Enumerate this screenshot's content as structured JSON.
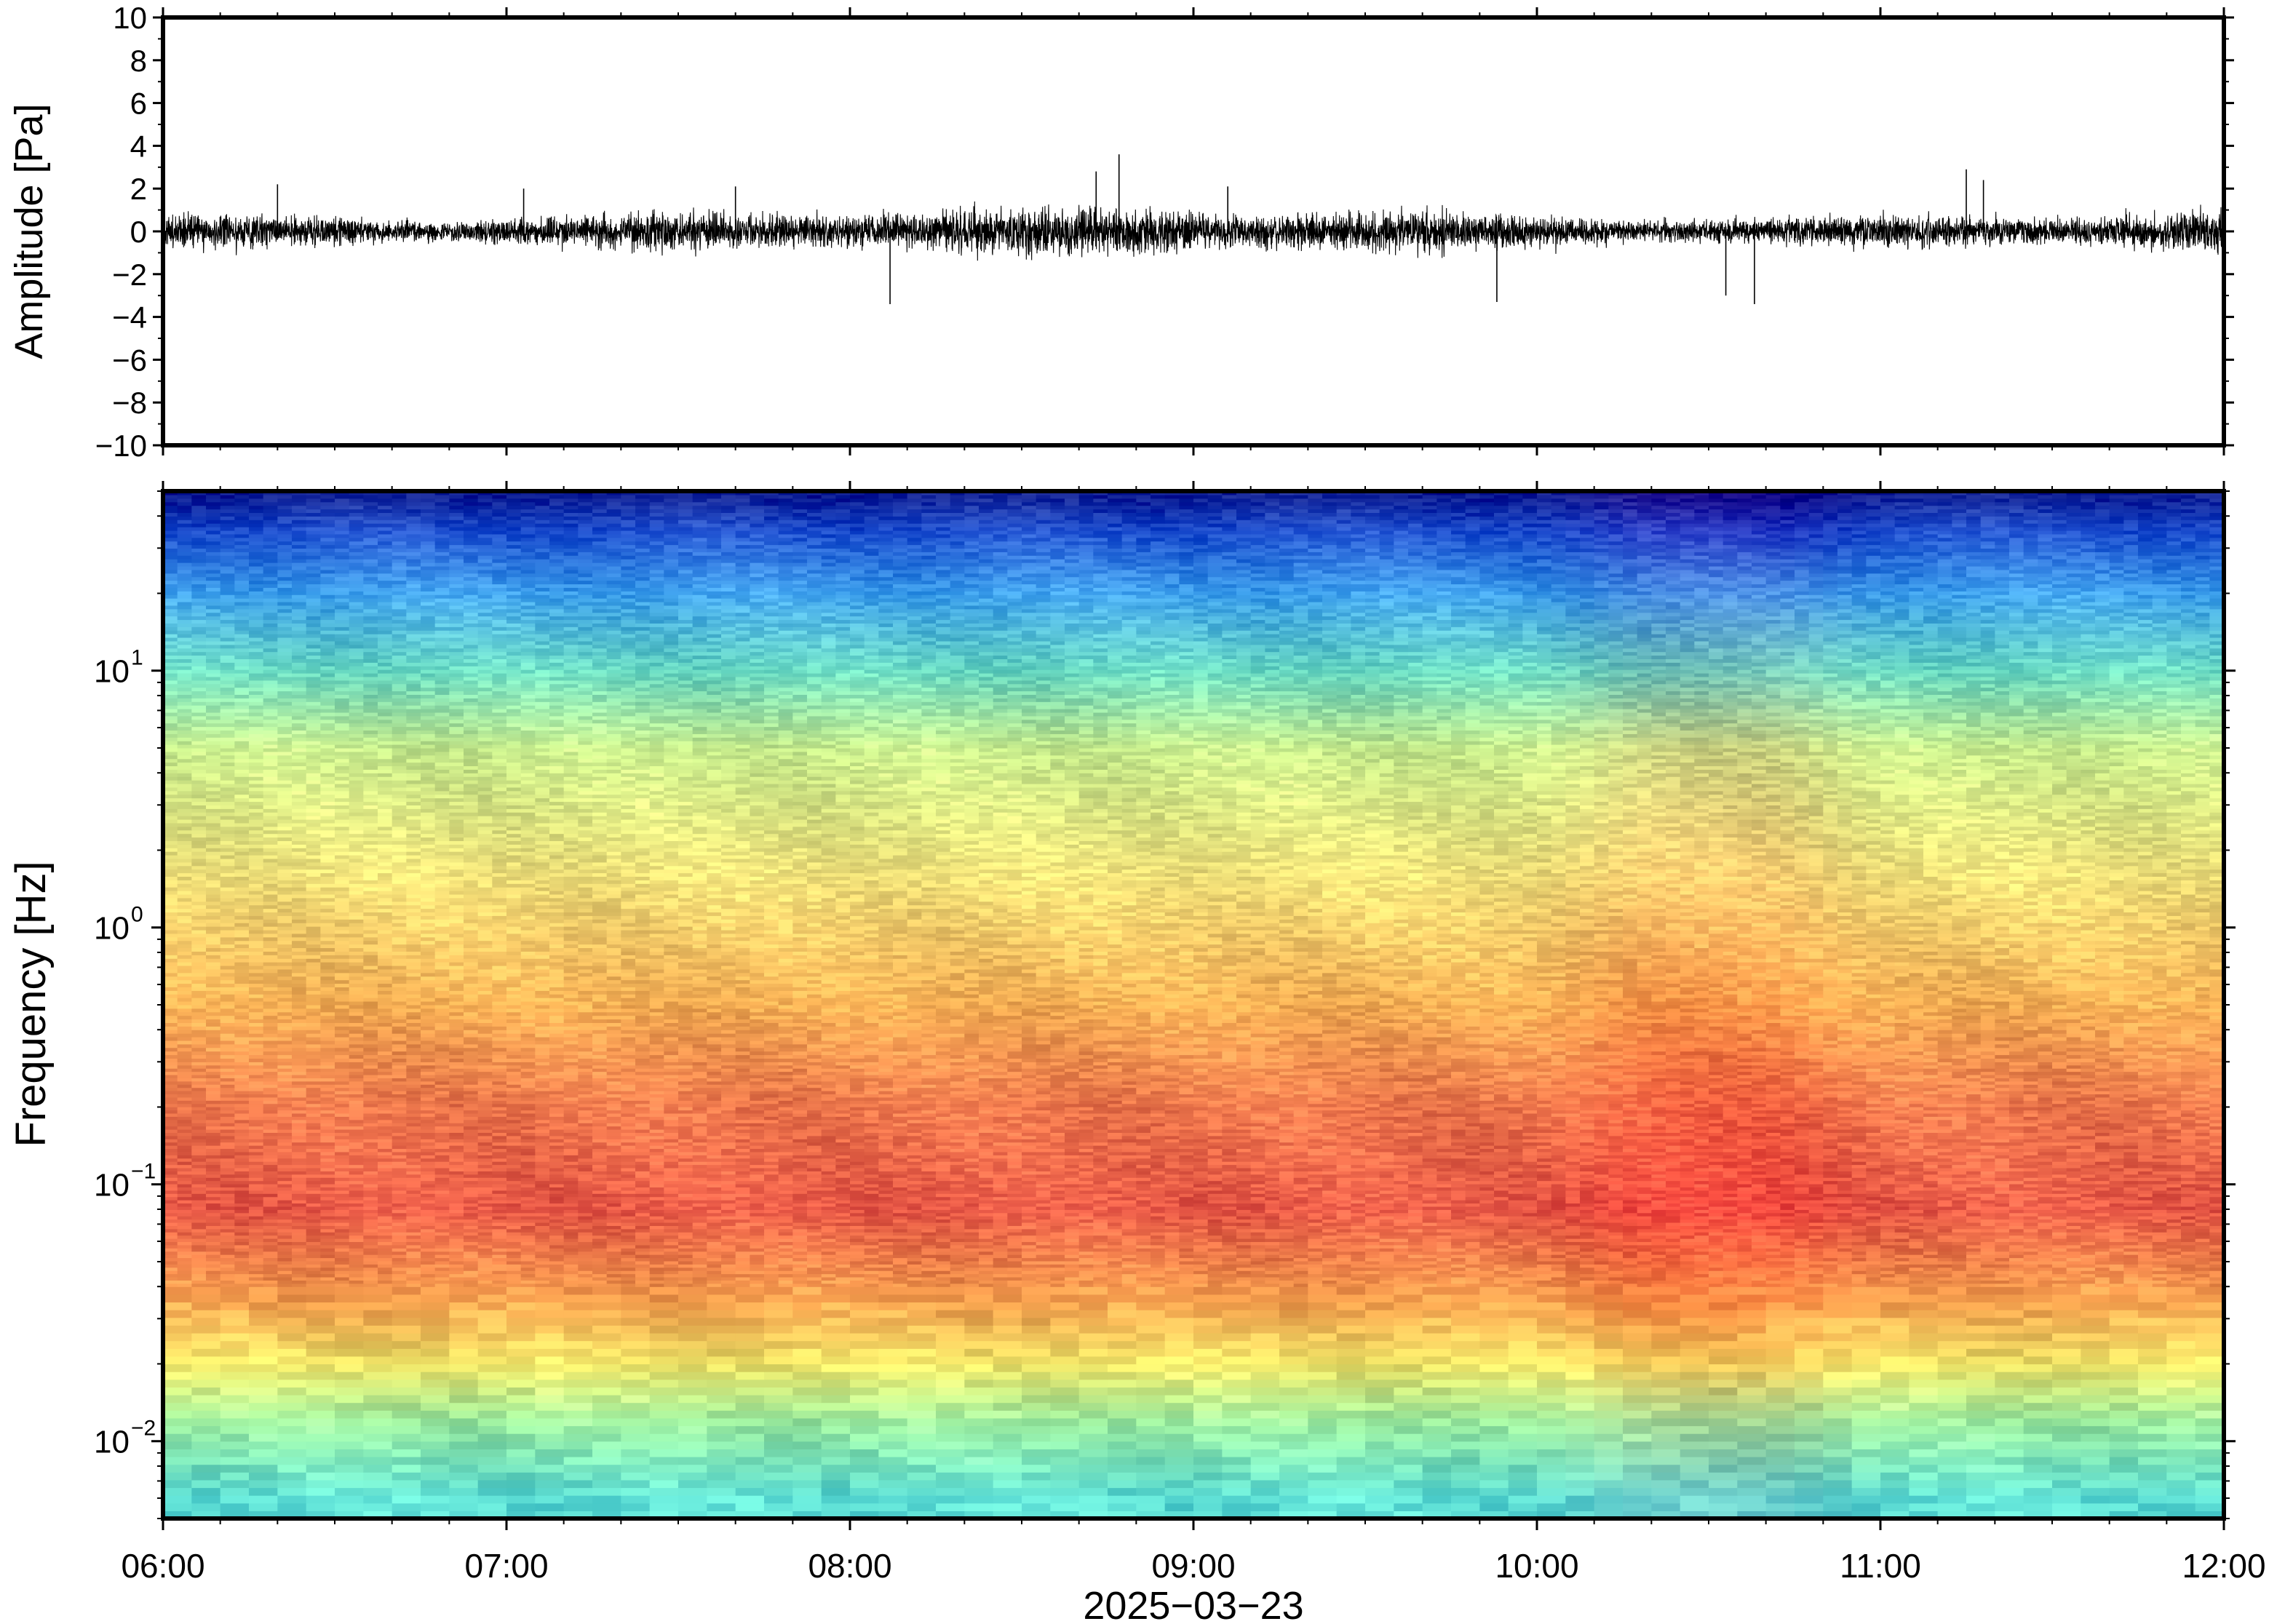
{
  "chart_data": [
    {
      "type": "line",
      "panel": "waveform",
      "ylabel": "Amplitude [Pa]",
      "ylim": [
        -10,
        10
      ],
      "yticks": [
        -10,
        -8,
        -6,
        -4,
        -2,
        0,
        2,
        4,
        6,
        8,
        10
      ],
      "ytick_labels": [
        "−10",
        "−8",
        "−6",
        "−4",
        "−2",
        "0",
        "2",
        "4",
        "6",
        "8",
        "10"
      ],
      "xlim": [
        "06:00",
        "12:00"
      ],
      "series": [
        {
          "color": "#000000",
          "typical_range": [
            -1.5,
            1.5
          ],
          "x": [
            "06:20",
            "07:03",
            "07:40",
            "08:07",
            "08:43",
            "08:47",
            "09:06",
            "09:53",
            "10:33",
            "10:38",
            "11:15",
            "11:18"
          ],
          "y": [
            2.2,
            2.0,
            2.1,
            -3.4,
            2.8,
            3.6,
            2.1,
            -3.3,
            -3.0,
            -3.4,
            2.9,
            2.4
          ]
        }
      ]
    },
    {
      "type": "heatmap",
      "panel": "spectrogram",
      "ylabel": "Frequency [Hz]",
      "xlabel": "2025−03−23",
      "yscale": "log",
      "ylim": [
        0.005,
        50
      ],
      "yticks": [
        0.01,
        0.1,
        1,
        10
      ],
      "ytick_labels": [
        {
          "base": "10",
          "exp": "−2"
        },
        {
          "base": "10",
          "exp": "−1"
        },
        {
          "base": "10",
          "exp": "0"
        },
        {
          "base": "10",
          "exp": "1"
        }
      ],
      "x": [
        "06:00",
        "07:00",
        "08:00",
        "09:00",
        "10:00",
        "11:00",
        "12:00"
      ],
      "xtick_labels": [
        "06:00",
        "07:00",
        "08:00",
        "09:00",
        "10:00",
        "11:00",
        "12:00"
      ],
      "colormap": "jet-like (blue = low power, red = high power)",
      "frequency_profile": [
        {
          "freq": 0.006,
          "color": "#5fe0d6"
        },
        {
          "freq": 0.012,
          "color": "#9fefa0"
        },
        {
          "freq": 0.02,
          "color": "#f4e96a"
        },
        {
          "freq": 0.035,
          "color": "#f7a24f"
        },
        {
          "freq": 0.08,
          "color": "#ea5a48"
        },
        {
          "freq": 0.2,
          "color": "#f07a4e"
        },
        {
          "freq": 0.5,
          "color": "#f7b055"
        },
        {
          "freq": 1.5,
          "color": "#f4e27a"
        },
        {
          "freq": 5,
          "color": "#c9ee8e"
        },
        {
          "freq": 10,
          "color": "#6bdcc4"
        },
        {
          "freq": 20,
          "color": "#3fa2ee"
        },
        {
          "freq": 35,
          "color": "#1e4fd0"
        },
        {
          "freq": 48,
          "color": "#0d1e95"
        }
      ],
      "high_energy_times": [
        "10:20",
        "10:40"
      ]
    }
  ]
}
